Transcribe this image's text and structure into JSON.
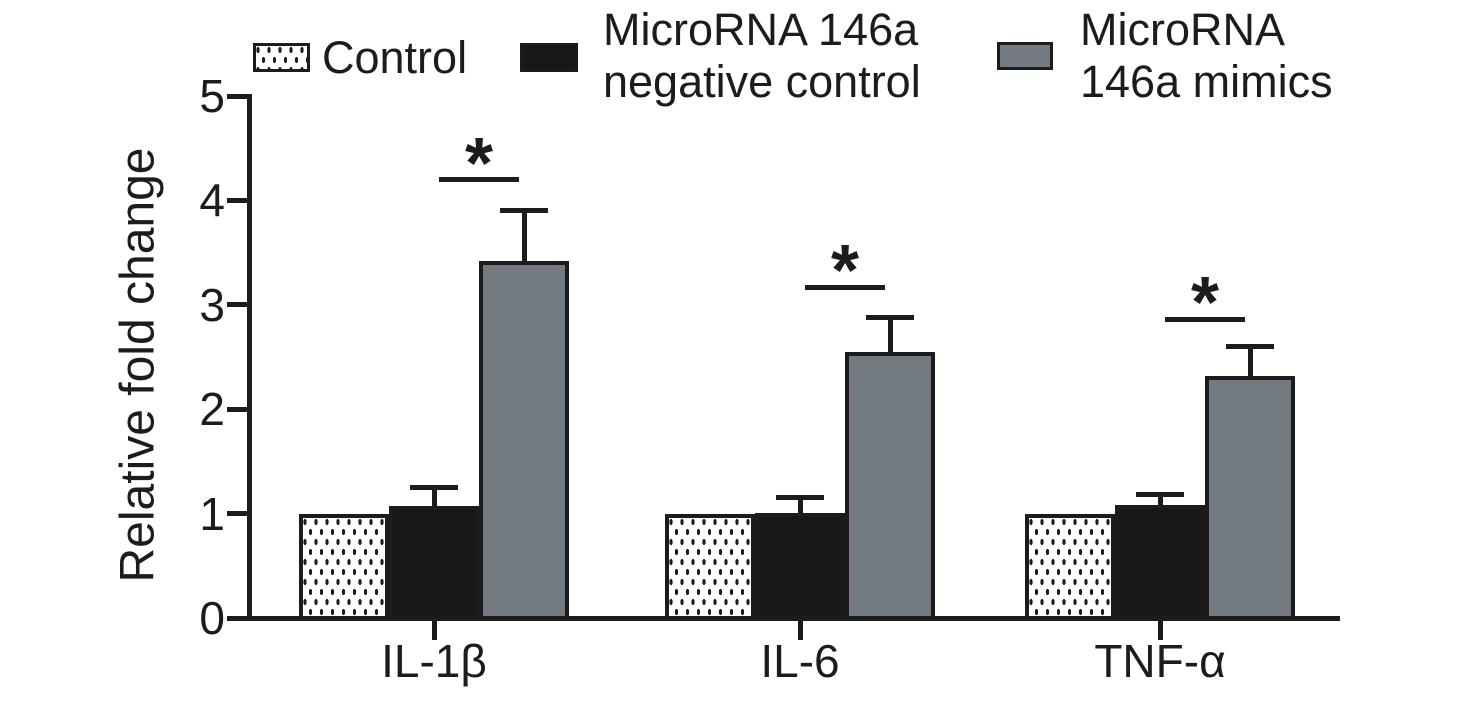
{
  "chart_data": {
    "type": "bar",
    "title": "",
    "xlabel": "",
    "ylabel": "Relative fold change",
    "ylim": [
      0,
      5
    ],
    "yticks": [
      0,
      1,
      2,
      3,
      4,
      5
    ],
    "grid": false,
    "legend_position": "top",
    "categories": [
      "IL-1β",
      "IL-6",
      "TNF-α"
    ],
    "series": [
      {
        "name": "Control",
        "legend_lines": [
          "Control"
        ],
        "style": "dotted",
        "values": [
          1.0,
          1.0,
          1.0
        ],
        "upper_errors": [
          0,
          0,
          0
        ]
      },
      {
        "name": "MicroRNA 146a negative control",
        "legend_lines": [
          "MicroRNA 146a",
          "negative control"
        ],
        "style": "black",
        "values": [
          1.07,
          1.01,
          1.08
        ],
        "upper_errors": [
          0.18,
          0.14,
          0.1
        ]
      },
      {
        "name": "MicroRNA 146a mimics",
        "legend_lines": [
          "MicroRNA",
          "146a mimics"
        ],
        "style": "gray",
        "values": [
          3.42,
          2.55,
          2.32
        ],
        "upper_errors": [
          0.48,
          0.33,
          0.28
        ]
      }
    ],
    "significance": [
      {
        "category": "IL-1β",
        "label": "*",
        "line_value": 4.2,
        "compares": [
          "MicroRNA 146a negative control",
          "MicroRNA 146a mimics"
        ]
      },
      {
        "category": "IL-6",
        "label": "*",
        "line_value": 3.17,
        "compares": [
          "MicroRNA 146a negative control",
          "MicroRNA 146a mimics"
        ]
      },
      {
        "category": "TNF-α",
        "label": "*",
        "line_value": 2.86,
        "compares": [
          "MicroRNA 146a negative control",
          "MicroRNA 146a mimics"
        ]
      }
    ],
    "colors": {
      "axis": "#1c1c1c",
      "black_bar": "#171717",
      "gray_bar": "#747a82",
      "dot_pattern": "#1c1c1c",
      "background": "#ffffff"
    }
  }
}
